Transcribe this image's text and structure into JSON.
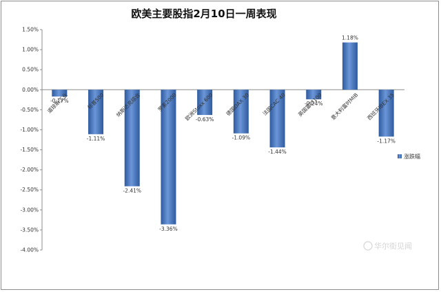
{
  "chart_data": {
    "type": "bar",
    "title": "欧美主要股指2月10日一周表现",
    "categories": [
      "道琼斯工业",
      "标普500",
      "纳斯达克综合",
      "罗素2000",
      "欧洲Stoxx 600",
      "德国DAX 30",
      "法国CAC 40",
      "英国富时100",
      "意大利富时MIB",
      "西班牙IBEX 35"
    ],
    "series": [
      {
        "name": "涨跌幅",
        "values": [
          -0.17,
          -1.11,
          -2.41,
          -3.36,
          -0.63,
          -1.09,
          -1.44,
          -0.24,
          1.18,
          -1.17
        ]
      }
    ],
    "value_labels": [
      "-0.17%",
      "-1.11%",
      "-2.41%",
      "-3.36%",
      "-0.63%",
      "-1.09%",
      "-1.44%",
      "-0.24%",
      "1.18%",
      "-1.17%"
    ],
    "y_ticks": [
      "1.50%",
      "1.00%",
      "0.50%",
      "0.00%",
      "-0.50%",
      "-1.00%",
      "-1.50%",
      "-2.00%",
      "-2.50%",
      "-3.00%",
      "-3.50%",
      "-4.00%"
    ],
    "ylim": [
      -4.0,
      1.5
    ],
    "grid": false,
    "legend_position": "right",
    "bar_color": "#4a78c0",
    "watermark": "华尔街见闻"
  }
}
